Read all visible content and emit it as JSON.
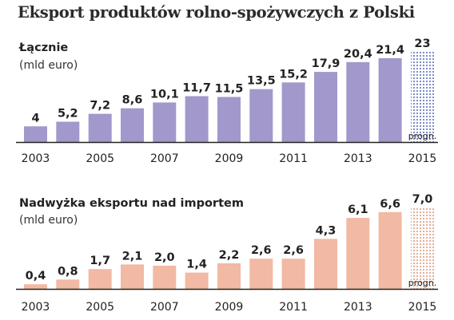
{
  "title": "Eksport produktów rolno-spożywczych z Polski",
  "colors": {
    "export_bar": "#a298cb",
    "export_forecast_dots": "#6f80c8",
    "surplus_bar": "#f2b9a4",
    "surplus_forecast_dots": "#e6a58c",
    "axis": "#222222"
  },
  "chart_data": [
    {
      "type": "bar",
      "title": "Łącznie",
      "ylabel": "(mld euro)",
      "categories": [
        "2003",
        "2004",
        "2005",
        "2006",
        "2007",
        "2008",
        "2009",
        "2010",
        "2011",
        "2012",
        "2013",
        "2014",
        "2015"
      ],
      "tick_labels": [
        "2003",
        "2005",
        "2007",
        "2009",
        "2011",
        "2013",
        "2015"
      ],
      "values": [
        4,
        5.2,
        7.2,
        8.6,
        10.1,
        11.7,
        11.5,
        13.5,
        15.2,
        17.9,
        20.4,
        21.4,
        23
      ],
      "value_labels": [
        "4",
        "5,2",
        "7,2",
        "8,6",
        "10,1",
        "11,7",
        "11,5",
        "13,5",
        "15,2",
        "17,9",
        "20,4",
        "21,4",
        "23"
      ],
      "forecast_index": 12,
      "forecast_label": "progn.",
      "ylim": [
        0,
        23
      ]
    },
    {
      "type": "bar",
      "title": "Nadwyżka eksportu nad importem",
      "ylabel": "(mld euro)",
      "categories": [
        "2003",
        "2004",
        "2005",
        "2006",
        "2007",
        "2008",
        "2009",
        "2010",
        "2011",
        "2012",
        "2013",
        "2014",
        "2015"
      ],
      "tick_labels": [
        "2003",
        "2005",
        "2007",
        "2009",
        "2011",
        "2013",
        "2015"
      ],
      "values": [
        0.4,
        0.8,
        1.7,
        2.1,
        2.0,
        1.4,
        2.2,
        2.6,
        2.6,
        4.3,
        6.1,
        6.6,
        7.0
      ],
      "value_labels": [
        "0,4",
        "0,8",
        "1,7",
        "2,1",
        "2,0",
        "1,4",
        "2,2",
        "2,6",
        "2,6",
        "4,3",
        "6,1",
        "6,6",
        "7,0"
      ],
      "forecast_index": 12,
      "forecast_label": "progn.",
      "ylim": [
        0,
        7.0
      ]
    }
  ]
}
